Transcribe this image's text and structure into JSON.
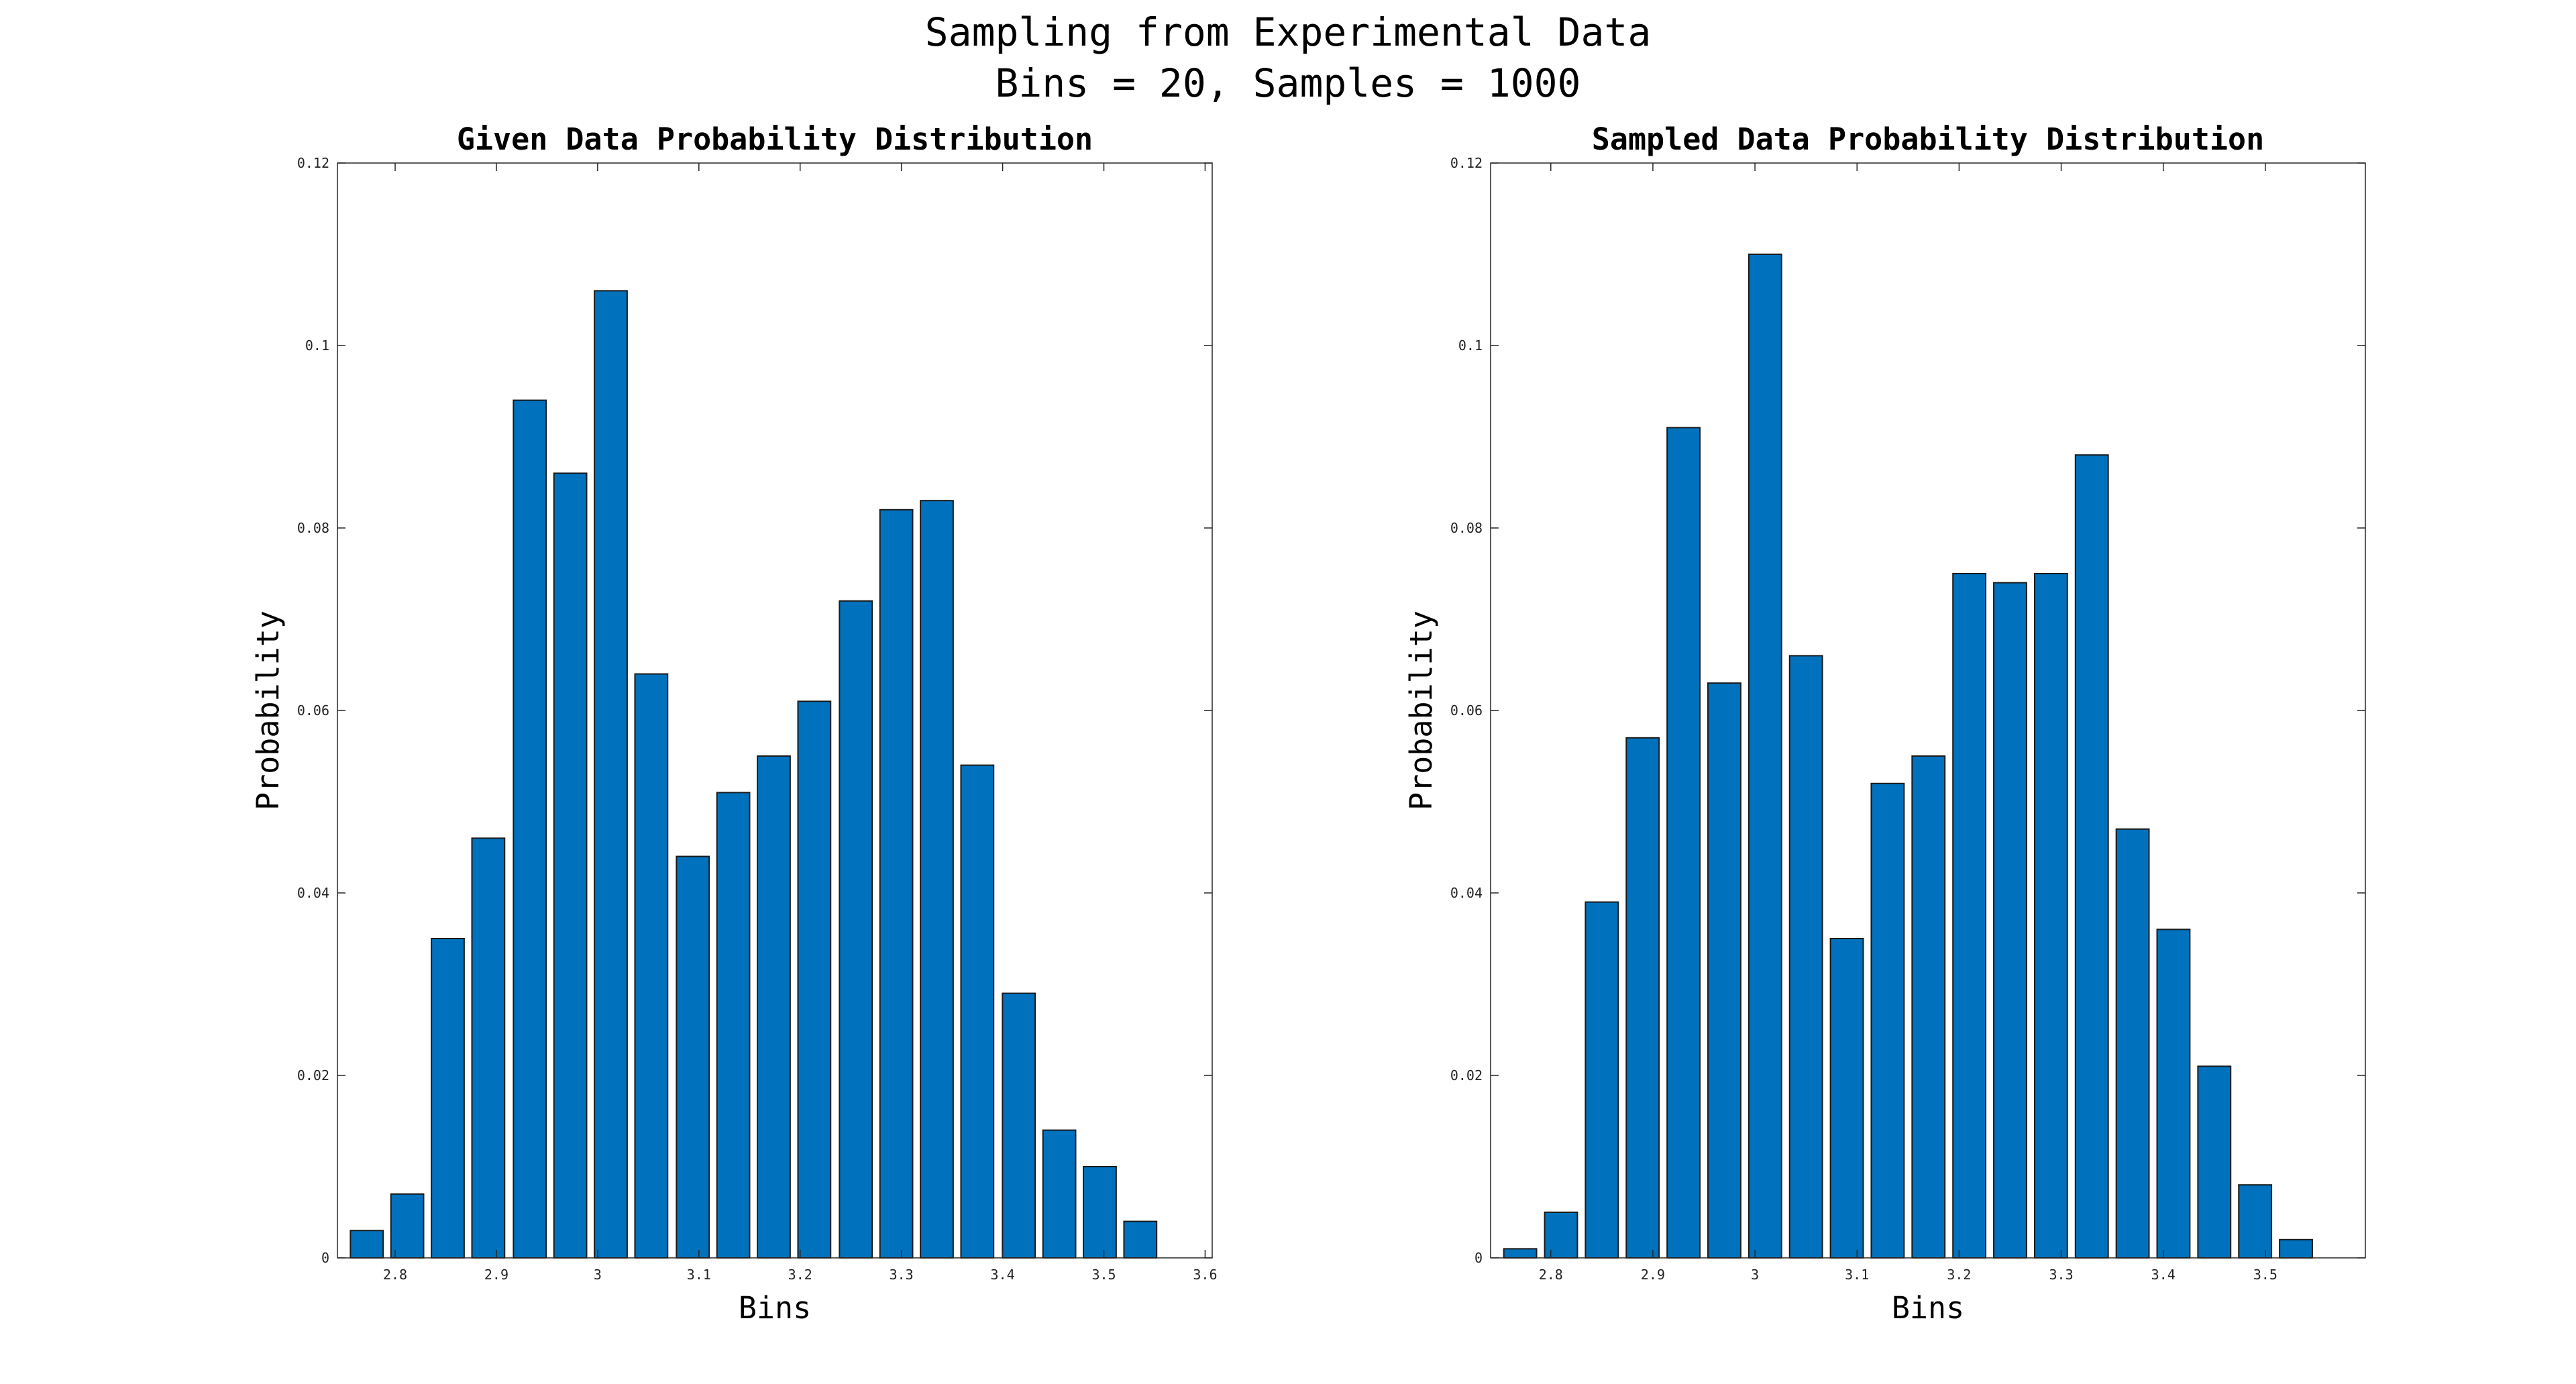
{
  "figure": {
    "title_lines": [
      "Sampling from Experimental Data",
      "Bins = 20, Samples = 1000"
    ]
  },
  "chart_data": [
    {
      "type": "bar",
      "title": "Given Data Probability Distribution",
      "xlabel": "Bins",
      "ylabel": "Probability",
      "xlim": [
        2.743,
        3.607
      ],
      "ylim": [
        0,
        0.12
      ],
      "xticks": [
        2.8,
        2.9,
        3,
        3.1,
        3.2,
        3.3,
        3.4,
        3.5,
        3.6
      ],
      "xtick_labels": [
        "2.8",
        "2.9",
        "3",
        "3.1",
        "3.2",
        "3.3",
        "3.4",
        "3.5",
        "3.6"
      ],
      "yticks": [
        0,
        0.02,
        0.04,
        0.06,
        0.08,
        0.1,
        0.12
      ],
      "ytick_labels": [
        "0",
        "0.02",
        "0.04",
        "0.06",
        "0.08",
        "0.1",
        "0.12"
      ],
      "bar_width": 0.0323,
      "x": [
        2.772,
        2.812,
        2.852,
        2.892,
        2.933,
        2.973,
        3.013,
        3.053,
        3.094,
        3.134,
        3.174,
        3.214,
        3.255,
        3.295,
        3.335,
        3.375,
        3.416,
        3.456,
        3.496,
        3.536
      ],
      "values": [
        0.003,
        0.007,
        0.035,
        0.046,
        0.094,
        0.086,
        0.106,
        0.064,
        0.044,
        0.051,
        0.055,
        0.061,
        0.072,
        0.082,
        0.083,
        0.054,
        0.029,
        0.014,
        0.01,
        0.004
      ],
      "color": "#0072bd",
      "grid": false
    },
    {
      "type": "bar",
      "title": "Sampled Data Probability Distribution",
      "xlabel": "Bins",
      "ylabel": "Probability",
      "xlim": [
        2.741,
        3.598
      ],
      "ylim": [
        0,
        0.12
      ],
      "xticks": [
        2.8,
        2.9,
        3,
        3.1,
        3.2,
        3.3,
        3.4,
        3.5
      ],
      "xtick_labels": [
        "2.8",
        "2.9",
        "3",
        "3.1",
        "3.2",
        "3.3",
        "3.4",
        "3.5"
      ],
      "yticks": [
        0,
        0.02,
        0.04,
        0.06,
        0.08,
        0.1,
        0.12
      ],
      "ytick_labels": [
        "0",
        "0.02",
        "0.04",
        "0.06",
        "0.08",
        "0.1",
        "0.12"
      ],
      "bar_width": 0.0321,
      "x": [
        2.77,
        2.81,
        2.85,
        2.89,
        2.93,
        2.97,
        3.01,
        3.05,
        3.09,
        3.13,
        3.17,
        3.21,
        3.25,
        3.29,
        3.33,
        3.37,
        3.41,
        3.45,
        3.49,
        3.53
      ],
      "values": [
        0.001,
        0.005,
        0.039,
        0.057,
        0.091,
        0.063,
        0.11,
        0.066,
        0.035,
        0.052,
        0.055,
        0.075,
        0.074,
        0.075,
        0.088,
        0.047,
        0.036,
        0.021,
        0.008,
        0.002
      ],
      "color": "#0072bd",
      "grid": false
    }
  ]
}
